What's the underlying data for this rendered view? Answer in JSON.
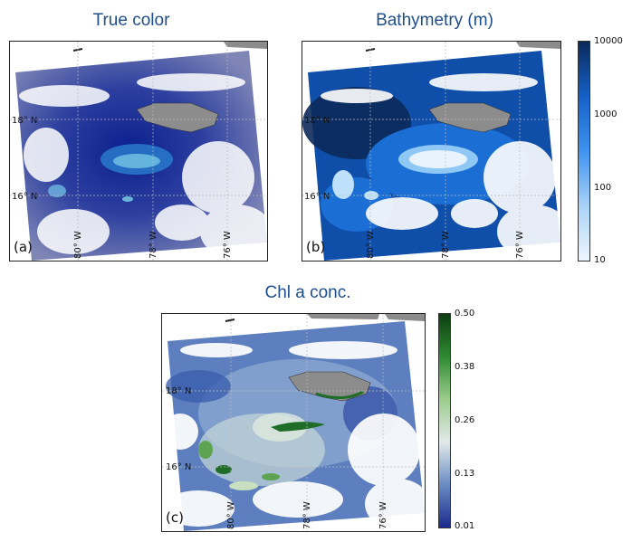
{
  "panels": [
    {
      "id": "a",
      "title": "True color",
      "tag": "(a)",
      "lat_labels": [
        "18° N",
        "16° N"
      ],
      "lon_labels": [
        "80° W",
        "78° W",
        "76° W"
      ]
    },
    {
      "id": "b",
      "title": "Bathymetry  (m)",
      "tag": "(b)",
      "lat_labels": [
        "18° N",
        "16° N"
      ],
      "lon_labels": [
        "80° W",
        "78° W",
        "76° W"
      ],
      "colorbar": {
        "scale": "log",
        "ticks": [
          "10000",
          "1000",
          "100",
          "10"
        ],
        "colors": [
          "#0b2a5a",
          "#1560c8",
          "#3f93f0",
          "#a9d2f7",
          "#eef6fd"
        ]
      }
    },
    {
      "id": "c",
      "title": "Chl a conc.",
      "tag": "(c)",
      "lat_labels": [
        "18° N",
        "16° N"
      ],
      "lon_labels": [
        "80° W",
        "78° W",
        "76° W"
      ],
      "colorbar": {
        "scale": "linear",
        "ticks": [
          "0.50",
          "0.38",
          "0.26",
          "0.13",
          "0.01"
        ],
        "colors": [
          "#0e3d12",
          "#2e8a32",
          "#9ccc8d",
          "#e2e9ea",
          "#6a8cc3",
          "#1a2a8c"
        ]
      }
    }
  ],
  "colors": {
    "title": "#1f4e8c",
    "land": "#8c8c8c",
    "cloud": "#ffffff"
  }
}
